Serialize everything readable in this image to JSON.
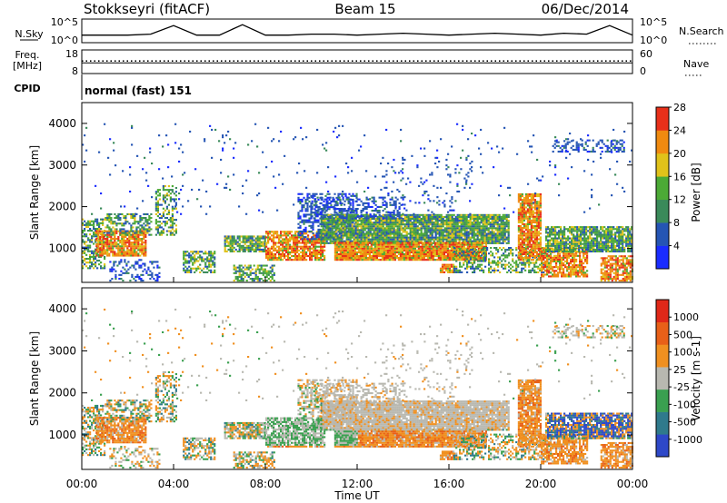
{
  "header": {
    "station": "Stokkseyri (fitACF)",
    "beam": "Beam 15",
    "date": "06/Dec/2014"
  },
  "side_labels": {
    "nsky": "N.Sky",
    "nsearch": "N.Search",
    "freq_line1": "Freq.",
    "freq_line2": "[MHz]",
    "nave": "Nave",
    "cpid": "CPID"
  },
  "cpid_text": "normal (fast) 151",
  "axis_x": {
    "label": "Time UT",
    "ticks": [
      "00:00",
      "04:00",
      "08:00",
      "12:00",
      "16:00",
      "20:00",
      "00:00"
    ]
  },
  "colors": {
    "power": [
      "#1a2cff",
      "#2555b4",
      "#3a8a5a",
      "#4caa36",
      "#e0c21a",
      "#f08a10",
      "#e8301a"
    ],
    "velocity": [
      "#2e48c8",
      "#2f7a8c",
      "#3aa050",
      "#b8b8b0",
      "#f09020",
      "#e86018",
      "#e02818"
    ],
    "ground_grey": "#b8b8b0"
  },
  "chart_data": [
    {
      "type": "line",
      "panel": "noise",
      "left_ticks": [
        "10^5",
        "10^0"
      ],
      "right_ticks": [
        "10^5",
        "10^0"
      ],
      "x": [
        0,
        1,
        2,
        3,
        4,
        5,
        6,
        7,
        8,
        9,
        10,
        11,
        12,
        13,
        14,
        15,
        16,
        17,
        18,
        19,
        20,
        21,
        22,
        23,
        24
      ],
      "series": [
        {
          "values": [
            0.3,
            0.3,
            0.3,
            0.35,
            0.8,
            0.3,
            0.3,
            0.85,
            0.3,
            0.3,
            0.35,
            0.35,
            0.3,
            0.35,
            0.4,
            0.35,
            0.3,
            0.35,
            0.4,
            0.35,
            0.3,
            0.4,
            0.35,
            0.8,
            0.3
          ]
        }
      ]
    },
    {
      "type": "scatter",
      "panel": "frequency-nave",
      "left_ticks": [
        "18",
        "8"
      ],
      "right_ticks": [
        "60",
        "0"
      ],
      "freq_mhz": 12.5,
      "nave": 32
    },
    {
      "type": "heatmap",
      "panel": "power",
      "xlabel": "Time UT",
      "ylabel": "Slant Range [km]",
      "xlim": [
        0,
        24
      ],
      "ylim": [
        180,
        4500
      ],
      "y_ticks": [
        "1000",
        "2000",
        "3000",
        "4000"
      ],
      "colorbar_label": "Power [dB]",
      "colorbar_ticks": [
        "4",
        "8",
        "12",
        "16",
        "20",
        "24",
        "28"
      ],
      "zlim": [
        0,
        30
      ]
    },
    {
      "type": "heatmap",
      "panel": "velocity",
      "xlabel": "Time UT",
      "ylabel": "Slant Range [km]",
      "xlim": [
        0,
        24
      ],
      "ylim": [
        180,
        4500
      ],
      "y_ticks": [
        "1000",
        "2000",
        "3000",
        "4000"
      ],
      "colorbar_label": "Velocity [m s-1]",
      "colorbar_ticks": [
        "1000",
        "500",
        "100",
        "25",
        "-25",
        "-100",
        "-500",
        "-1000"
      ],
      "zlim": [
        -1000,
        1000
      ]
    }
  ]
}
